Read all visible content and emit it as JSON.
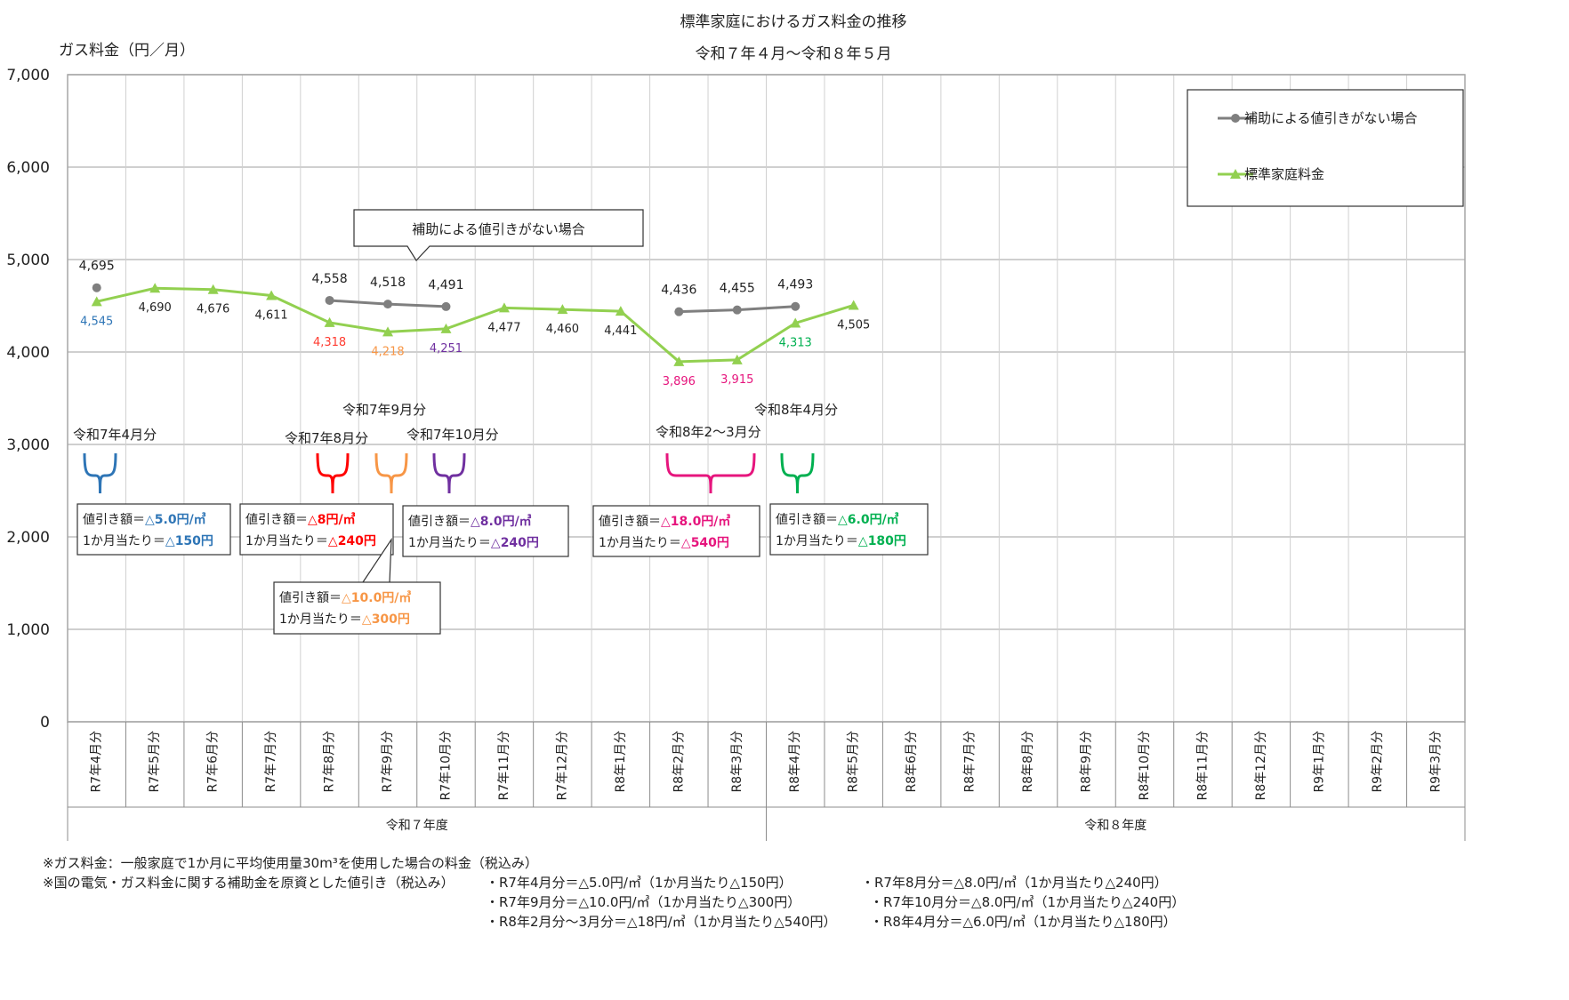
{
  "chart_data": {
    "type": "line",
    "title": "標準家庭におけるガス料金の推移",
    "subtitle": "令和７年４月～令和８年５月",
    "ylabel": "ガス料金（円／月）",
    "ylim": [
      0,
      7000
    ],
    "yticks": [
      "0",
      "1,000",
      "2,000",
      "3,000",
      "4,000",
      "5,000",
      "6,000",
      "7,000"
    ],
    "grid": true,
    "legend_position": "top-right",
    "categories": [
      "R7年4月分",
      "R7年5月分",
      "R7年6月分",
      "R7年7月分",
      "R7年8月分",
      "R7年9月分",
      "R7年10月分",
      "R7年11月分",
      "R7年12月分",
      "R8年1月分",
      "R8年2月分",
      "R8年3月分",
      "R8年4月分",
      "R8年5月分",
      "R8年6月分",
      "R8年7月分",
      "R8年8月分",
      "R8年9月分",
      "R8年10月分",
      "R8年11月分",
      "R8年12月分",
      "R9年1月分",
      "R9年2月分",
      "R9年3月分"
    ],
    "fiscal_years": [
      "令和７年度",
      "令和８年度"
    ],
    "series": [
      {
        "name": "補助による値引きがない場合",
        "color": "#7f7f7f",
        "marker": "circle",
        "values": [
          4695,
          null,
          null,
          null,
          4558,
          4518,
          4491,
          null,
          null,
          null,
          4436,
          4455,
          4493,
          null,
          null,
          null,
          null,
          null,
          null,
          null,
          null,
          null,
          null,
          null
        ],
        "labels": [
          "4,695",
          null,
          null,
          null,
          "4,558",
          "4,518",
          "4,491",
          null,
          null,
          null,
          "4,436",
          "4,455",
          "4,493",
          null,
          null,
          null,
          null,
          null,
          null,
          null,
          null,
          null,
          null,
          null
        ]
      },
      {
        "name": "標準家庭料金",
        "color": "#92d050",
        "marker": "triangle",
        "values": [
          4545,
          4690,
          4676,
          4611,
          4318,
          4218,
          4251,
          4477,
          4460,
          4441,
          3896,
          3915,
          4313,
          4505,
          null,
          null,
          null,
          null,
          null,
          null,
          null,
          null,
          null,
          null
        ],
        "labels": [
          "4,545",
          "4,690",
          "4,676",
          "4,611",
          "4,318",
          "4,218",
          "4,251",
          "4,477",
          "4,460",
          "4,441",
          "3,896",
          "3,915",
          "4,313",
          "4,505",
          null,
          null,
          null,
          null,
          null,
          null,
          null,
          null,
          null,
          null
        ],
        "label_colors": [
          "#2e75b6",
          "#222222",
          "#222222",
          "#222222",
          "#ff3b30",
          "#f79646",
          "#7030a0",
          "#222222",
          "#222222",
          "#222222",
          "#e6157d",
          "#e6157d",
          "#00b050",
          "#222222"
        ]
      }
    ],
    "callout": "補助による値引きがない場合",
    "annotations": [
      {
        "period": "令和7年4月分",
        "color": "#2e75b6",
        "line1_prefix": "値引き額＝",
        "line1_value": "△5.0円/㎥",
        "line2_prefix": "1か月当たり＝",
        "line2_value": "△150円"
      },
      {
        "period": "令和7年8月分",
        "color": "#ff0000",
        "line1_prefix": "値引き額＝",
        "line1_value": "△8円/㎥",
        "line2_prefix": "1か月当たり＝",
        "line2_value": "△240円"
      },
      {
        "period": "令和7年9月分",
        "color": "#f79646",
        "line1_prefix": "値引き額＝",
        "line1_value": "△10.0円/㎥",
        "line2_prefix": "1か月当たり＝",
        "line2_value": "△300円"
      },
      {
        "period": "令和7年10月分",
        "color": "#7030a0",
        "line1_prefix": "値引き額＝",
        "line1_value": "△8.0円/㎥",
        "line2_prefix": "1か月当たり＝",
        "line2_value": "△240円"
      },
      {
        "period": "令和8年2～3月分",
        "color": "#e6157d",
        "line1_prefix": "値引き額＝",
        "line1_value": "△18.0円/㎥",
        "line2_prefix": "1か月当たり＝",
        "line2_value": "△540円"
      },
      {
        "period": "令和8年4月分",
        "color": "#00b050",
        "line1_prefix": "値引き額＝",
        "line1_value": "△6.0円/㎥",
        "line2_prefix": "1か月当たり＝",
        "line2_value": "△180円"
      }
    ]
  },
  "notes": {
    "line1": "※ガス料金：一般家庭で1か月に平均使用量30m³を使用した場合の料金（税込み）",
    "line2a": "※国の電気・ガス料金に関する補助金を原資とした値引き（税込み）",
    "line2b": "・R7年4月分＝△5.0円/㎥（1か月当たり△150円）",
    "line2c": "・R7年8月分＝△8.0円/㎥（1か月当たり△240円）",
    "line3b": "・R7年9月分＝△10.0円/㎥（1か月当たり△300円）",
    "line3c": "・R7年10月分＝△8.0円/㎥（1か月当たり△240円）",
    "line4b": "・R8年2月分～3月分＝△18円/㎥（1か月当たり△540円）",
    "line4c": "・R8年4月分＝△6.0円/㎥（1か月当たり△180円）"
  }
}
